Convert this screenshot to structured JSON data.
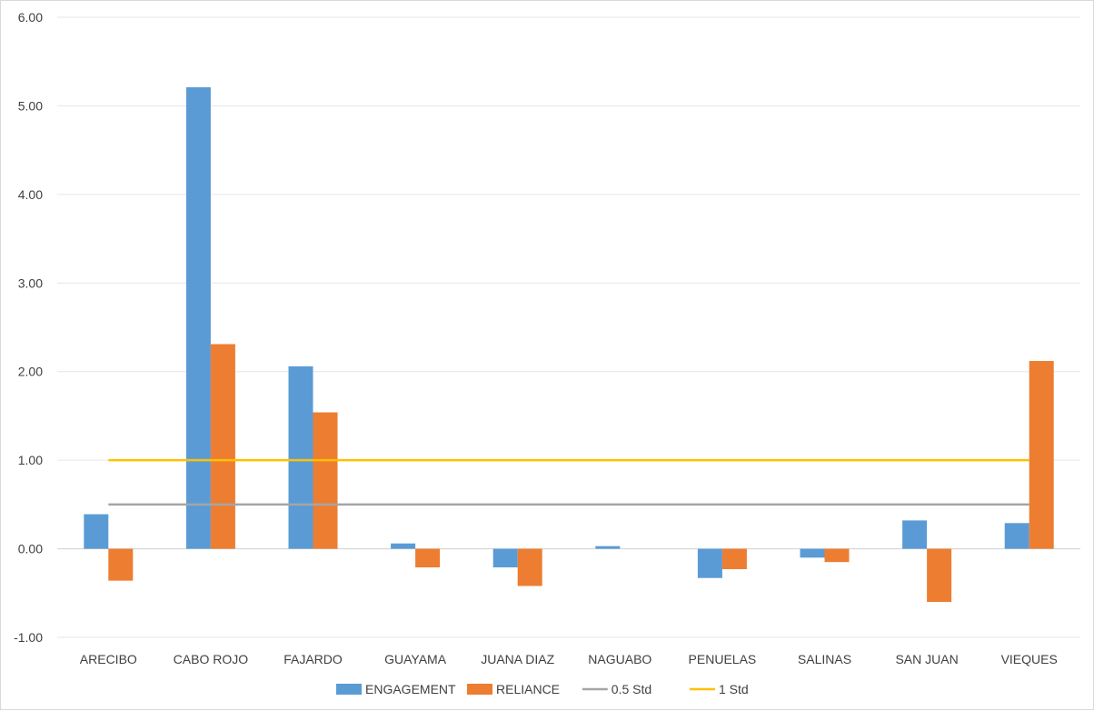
{
  "chart_data": {
    "type": "bar",
    "title": "",
    "xlabel": "",
    "ylabel": "",
    "ylim": [
      -1,
      6
    ],
    "yticks": [
      "-1.00",
      "0.00",
      "1.00",
      "2.00",
      "3.00",
      "4.00",
      "5.00",
      "6.00"
    ],
    "categories": [
      "ARECIBO",
      "CABO ROJO",
      "FAJARDO",
      "GUAYAMA",
      "JUANA DIAZ",
      "NAGUABO",
      "PENUELAS",
      "SALINAS",
      "SAN JUAN",
      "VIEQUES"
    ],
    "series": [
      {
        "name": "ENGAGEMENT",
        "kind": "bar",
        "color": "#5b9bd5",
        "values": [
          0.39,
          5.21,
          2.06,
          0.06,
          -0.21,
          0.03,
          -0.33,
          -0.1,
          0.32,
          0.29
        ]
      },
      {
        "name": "RELIANCE",
        "kind": "bar",
        "color": "#ed7d31",
        "values": [
          -0.36,
          2.31,
          1.54,
          -0.21,
          -0.42,
          0.0,
          -0.23,
          -0.15,
          -0.6,
          2.12
        ]
      },
      {
        "name": "0.5 Std",
        "kind": "line",
        "color": "#a5a5a5",
        "values": [
          0.5,
          0.5,
          0.5,
          0.5,
          0.5,
          0.5,
          0.5,
          0.5,
          0.5,
          0.5
        ]
      },
      {
        "name": "1 Std",
        "kind": "line",
        "color": "#ffc000",
        "values": [
          1.0,
          1.0,
          1.0,
          1.0,
          1.0,
          1.0,
          1.0,
          1.0,
          1.0,
          1.0
        ]
      }
    ],
    "grid": true,
    "legend_position": "bottom"
  }
}
